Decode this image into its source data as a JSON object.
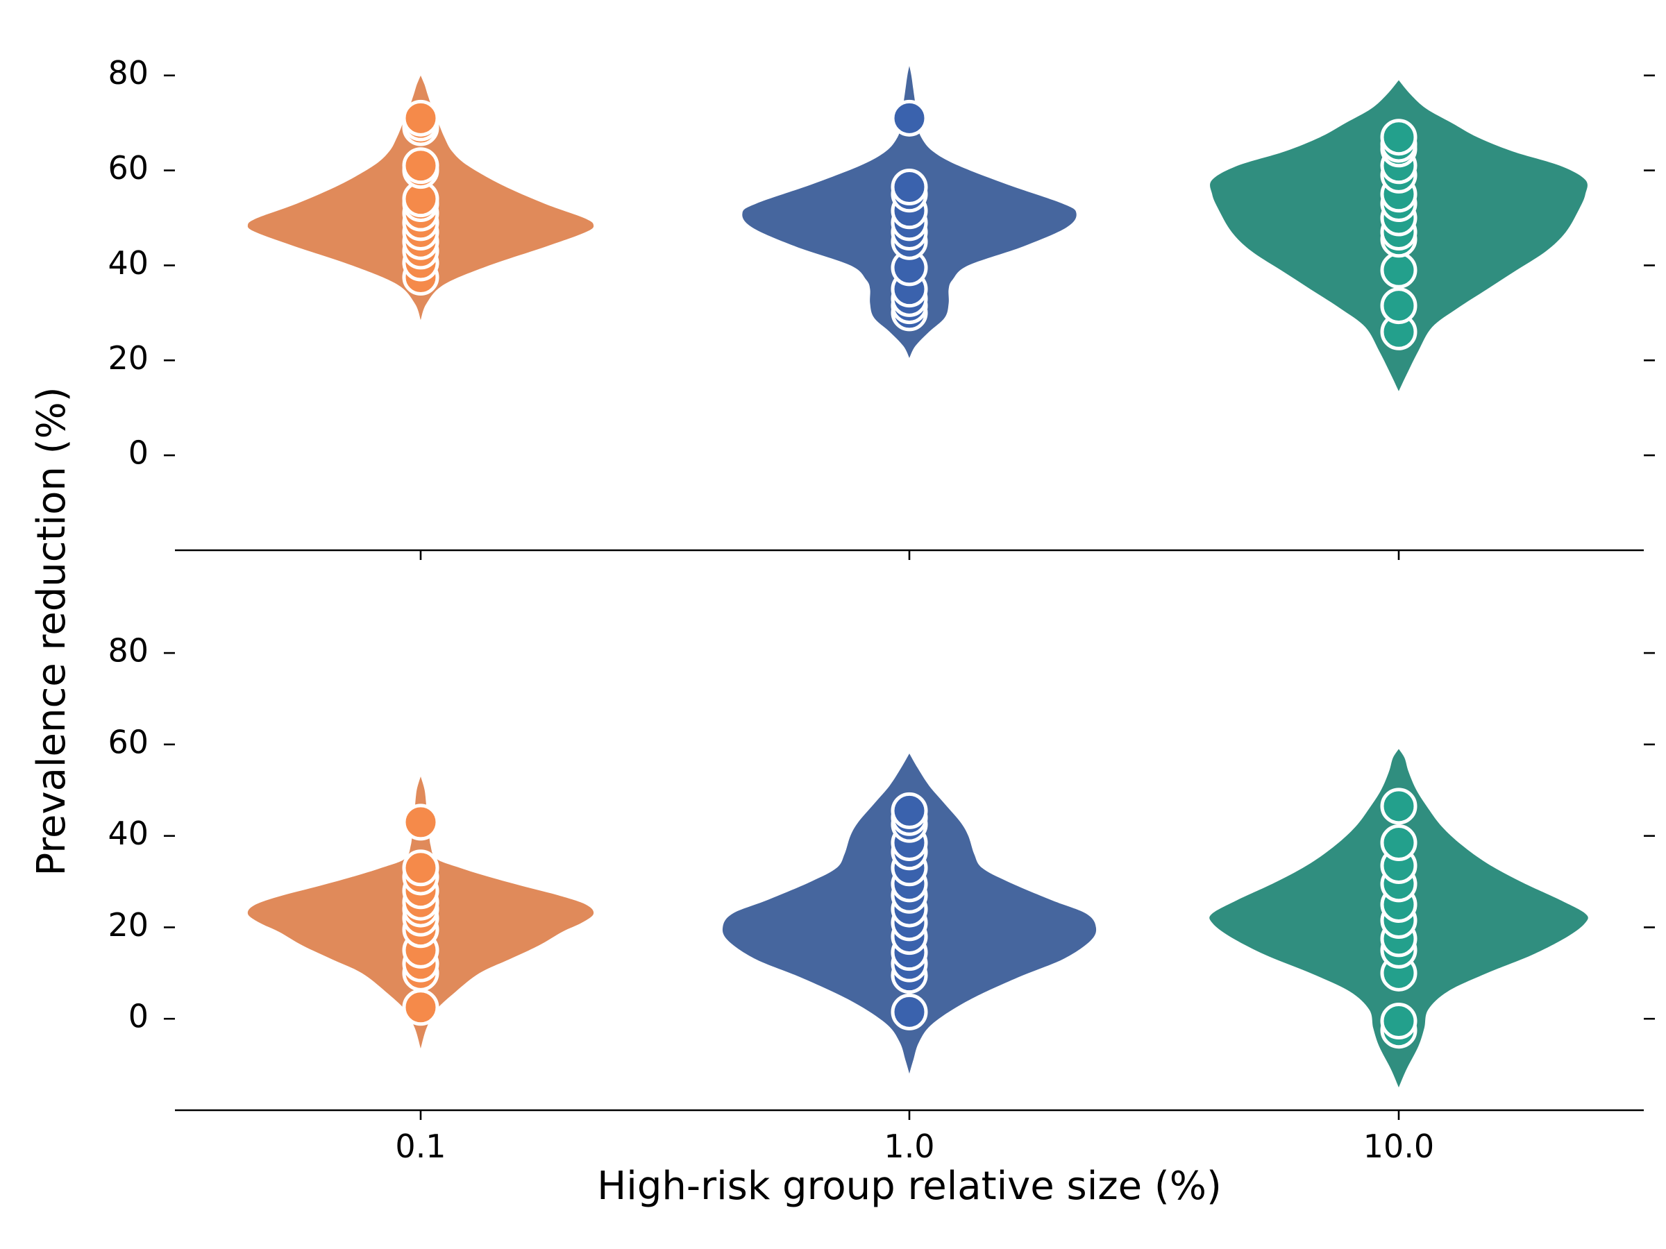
{
  "chart_data": {
    "type": "violin",
    "xlabel": "High-risk group relative size (%)",
    "ylabel": "Prevalence reduction (%)",
    "categories": [
      "0.1",
      "1.0",
      "10.0"
    ],
    "colors": {
      "violin": [
        "#e08a5a",
        "#46669e",
        "#308e7f"
      ],
      "point": [
        "#f58a4a",
        "#3a62ad",
        "#23a08c"
      ]
    },
    "panels": [
      {
        "name": "top",
        "ylim": [
          -20,
          88
        ],
        "yticks": [
          0,
          20,
          40,
          60,
          80
        ],
        "violins": [
          {
            "category": "0.1",
            "profile": [
              [
                28.5,
                0
              ],
              [
                32,
                0.03
              ],
              [
                36,
                0.12
              ],
              [
                40,
                0.35
              ],
              [
                44,
                0.64
              ],
              [
                47,
                0.84
              ],
              [
                48.5,
                0.88
              ],
              [
                50,
                0.83
              ],
              [
                53,
                0.63
              ],
              [
                57,
                0.41
              ],
              [
                61,
                0.24
              ],
              [
                64,
                0.16
              ],
              [
                67,
                0.12
              ],
              [
                70,
                0.09
              ],
              [
                73,
                0.06
              ],
              [
                76,
                0.035
              ],
              [
                78,
                0.02
              ],
              [
                80,
                0
              ]
            ],
            "points": [
              37.5,
              40.5,
              43,
              45,
              47,
              49,
              51,
              53,
              54,
              60,
              61,
              69,
              70,
              71
            ]
          },
          {
            "category": "1.0",
            "profile": [
              [
                20.5,
                0
              ],
              [
                23,
                0.03
              ],
              [
                26,
                0.1
              ],
              [
                29,
                0.18
              ],
              [
                32,
                0.2
              ],
              [
                35,
                0.2
              ],
              [
                37,
                0.22
              ],
              [
                40,
                0.3
              ],
              [
                44,
                0.58
              ],
              [
                48,
                0.8
              ],
              [
                51,
                0.85
              ],
              [
                53,
                0.78
              ],
              [
                57,
                0.5
              ],
              [
                61,
                0.25
              ],
              [
                64,
                0.12
              ],
              [
                67,
                0.06
              ],
              [
                70,
                0.04
              ],
              [
                74,
                0.03
              ],
              [
                77,
                0.02
              ],
              [
                80,
                0.01
              ],
              [
                82,
                0
              ]
            ],
            "points": [
              30,
              31.5,
              33,
              35,
              39.5,
              45,
              47,
              49,
              51.5,
              55,
              56.5,
              71
            ]
          },
          {
            "category": "10.0",
            "profile": [
              [
                13.5,
                0
              ],
              [
                17,
                0.04
              ],
              [
                22,
                0.1
              ],
              [
                27,
                0.17
              ],
              [
                31,
                0.3
              ],
              [
                35,
                0.45
              ],
              [
                39,
                0.6
              ],
              [
                43,
                0.75
              ],
              [
                47,
                0.85
              ],
              [
                52,
                0.92
              ],
              [
                55,
                0.95
              ],
              [
                58,
                0.95
              ],
              [
                61,
                0.82
              ],
              [
                64,
                0.58
              ],
              [
                67,
                0.4
              ],
              [
                70,
                0.27
              ],
              [
                73,
                0.14
              ],
              [
                76,
                0.06
              ],
              [
                79,
                0
              ]
            ],
            "points": [
              26,
              31.5,
              39,
              45.5,
              47,
              50,
              53,
              55,
              59,
              61,
              64.5,
              65.5,
              67
            ]
          }
        ]
      },
      {
        "name": "bottom",
        "ylim": [
          -20,
          92
        ],
        "yticks": [
          0,
          20,
          40,
          60,
          80
        ],
        "violins": [
          {
            "category": "0.1",
            "profile": [
              [
                -6.5,
                0
              ],
              [
                -2,
                0.03
              ],
              [
                2,
                0.08
              ],
              [
                6,
                0.18
              ],
              [
                10,
                0.3
              ],
              [
                13,
                0.45
              ],
              [
                16,
                0.6
              ],
              [
                19,
                0.72
              ],
              [
                21,
                0.82
              ],
              [
                23,
                0.88
              ],
              [
                25,
                0.84
              ],
              [
                27,
                0.7
              ],
              [
                29,
                0.52
              ],
              [
                31,
                0.35
              ],
              [
                33,
                0.2
              ],
              [
                35,
                0.08
              ],
              [
                38,
                0.05
              ],
              [
                42,
                0.04
              ],
              [
                46,
                0.03
              ],
              [
                50,
                0.02
              ],
              [
                53,
                0
              ]
            ],
            "points": [
              2.5,
              10,
              12,
              15,
              19.5,
              22,
              24,
              25.5,
              28,
              31,
              33,
              43
            ]
          },
          {
            "category": "1.0",
            "profile": [
              [
                -12,
                0
              ],
              [
                -9,
                0.02
              ],
              [
                -5,
                0.05
              ],
              [
                -1,
                0.12
              ],
              [
                4,
                0.3
              ],
              [
                9,
                0.55
              ],
              [
                13,
                0.78
              ],
              [
                17,
                0.92
              ],
              [
                20,
                0.95
              ],
              [
                23,
                0.9
              ],
              [
                26,
                0.72
              ],
              [
                30,
                0.5
              ],
              [
                33,
                0.37
              ],
              [
                36,
                0.33
              ],
              [
                40,
                0.3
              ],
              [
                43,
                0.26
              ],
              [
                47,
                0.18
              ],
              [
                51,
                0.1
              ],
              [
                55,
                0.04
              ],
              [
                58,
                0
              ]
            ],
            "points": [
              1.5,
              9.5,
              12,
              14.5,
              18,
              21,
              24,
              27,
              29.5,
              33,
              36.5,
              38.5,
              42.5,
              44,
              45.5
            ]
          },
          {
            "category": "10.0",
            "profile": [
              [
                -15,
                0
              ],
              [
                -11,
                0.04
              ],
              [
                -6,
                0.1
              ],
              [
                -2,
                0.13
              ],
              [
                2,
                0.15
              ],
              [
                6,
                0.25
              ],
              [
                10,
                0.45
              ],
              [
                14,
                0.68
              ],
              [
                18,
                0.86
              ],
              [
                21,
                0.95
              ],
              [
                23,
                0.95
              ],
              [
                26,
                0.82
              ],
              [
                30,
                0.62
              ],
              [
                34,
                0.45
              ],
              [
                38,
                0.32
              ],
              [
                42,
                0.22
              ],
              [
                46,
                0.15
              ],
              [
                50,
                0.09
              ],
              [
                54,
                0.05
              ],
              [
                57,
                0.03
              ],
              [
                59,
                0
              ]
            ],
            "points": [
              -2.5,
              -0.5,
              10,
              15,
              17.5,
              21.5,
              25,
              29.5,
              33.5,
              38.5,
              46.5
            ]
          }
        ]
      }
    ]
  }
}
